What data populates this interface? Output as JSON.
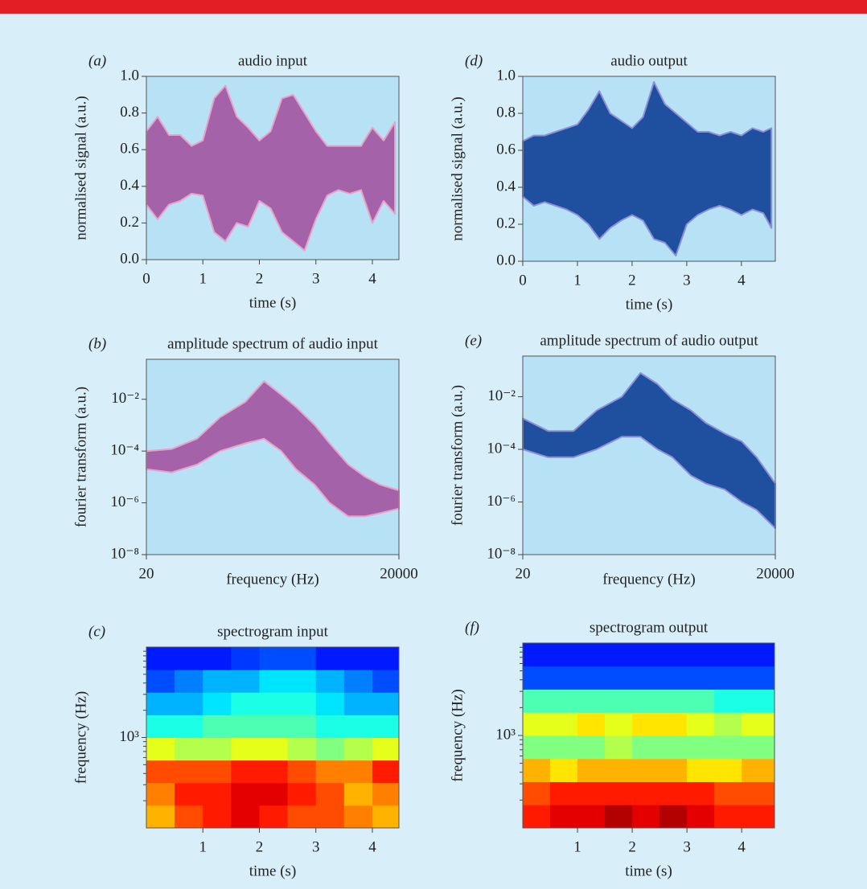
{
  "chart_data": [
    {
      "type": "area",
      "panel_label": "(a)",
      "title": "audio input",
      "xlabel": "time (s)",
      "ylabel": "normalised signal (a.u.)",
      "x": [
        0,
        0.2,
        0.4,
        0.6,
        0.8,
        1.0,
        1.2,
        1.4,
        1.6,
        1.8,
        2.0,
        2.2,
        2.4,
        2.6,
        2.8,
        3.0,
        3.2,
        3.4,
        3.6,
        3.8,
        4.0,
        4.2,
        4.4
      ],
      "upper": [
        0.7,
        0.78,
        0.68,
        0.68,
        0.62,
        0.65,
        0.88,
        0.95,
        0.78,
        0.72,
        0.65,
        0.7,
        0.88,
        0.9,
        0.8,
        0.7,
        0.62,
        0.62,
        0.62,
        0.62,
        0.72,
        0.65,
        0.75
      ],
      "lower": [
        0.3,
        0.22,
        0.3,
        0.32,
        0.36,
        0.35,
        0.15,
        0.1,
        0.2,
        0.18,
        0.32,
        0.28,
        0.15,
        0.1,
        0.05,
        0.22,
        0.35,
        0.38,
        0.36,
        0.38,
        0.2,
        0.32,
        0.25
      ],
      "color": "#a462a8",
      "edge_color": "#ec9fc9",
      "xlim": [
        0,
        4.47
      ],
      "xticks": [
        0,
        1,
        2,
        3,
        4
      ],
      "ylim": [
        0,
        1
      ],
      "yticks": [
        {
          "value": 0,
          "label": "0.0"
        },
        0.2,
        0.4,
        0.6,
        0.8,
        {
          "value": 1,
          "label": "1.0"
        }
      ]
    },
    {
      "type": "area",
      "panel_label": "(b)",
      "title": "amplitude spectrum of audio input",
      "xlabel": "frequency (Hz)",
      "ylabel": "fourier transform (a.u.)",
      "xlog": true,
      "ylog": true,
      "x": [
        20,
        40,
        80,
        150,
        300,
        500,
        800,
        1200,
        2000,
        3000,
        5000,
        8000,
        12000,
        20000
      ],
      "upper": [
        0.0001,
        0.00012,
        0.0003,
        0.002,
        0.008,
        0.05,
        0.015,
        0.005,
        0.001,
        0.0002,
        3e-05,
        1e-05,
        5e-06,
        3e-06
      ],
      "lower": [
        2e-05,
        1.5e-05,
        3e-05,
        0.0001,
        0.0002,
        0.0003,
        0.0001,
        2e-05,
        5e-06,
        1e-06,
        3e-07,
        3e-07,
        4e-07,
        6e-07
      ],
      "color": "#a462a8",
      "edge_color": "#ec9fc9",
      "xlim": [
        20,
        20000
      ],
      "xticks": [
        20,
        20000
      ],
      "ylim": [
        1e-08,
        0.35
      ],
      "yticks": [
        {
          "value": 1e-08,
          "label": "10⁻⁸"
        },
        {
          "value": 1e-06,
          "label": "10⁻⁶"
        },
        {
          "value": 0.0001,
          "label": "10⁻⁴"
        },
        {
          "value": 0.01,
          "label": "10⁻²"
        }
      ]
    },
    {
      "type": "heatmap",
      "panel_label": "(c)",
      "title": "spectrogram input",
      "xlabel": "time (s)",
      "ylabel": "frequency (Hz)",
      "ylog": true,
      "colormap": "jet",
      "xbins": [
        0,
        0.5,
        1,
        1.5,
        2,
        2.5,
        3,
        3.5,
        4,
        4.47
      ],
      "ybins": [
        100,
        178,
        316,
        562,
        1000,
        1778,
        3162,
        5623,
        10000
      ],
      "z": [
        [
          0.7,
          0.8,
          0.85,
          0.9,
          0.85,
          0.8,
          0.8,
          0.75,
          0.7
        ],
        [
          0.75,
          0.85,
          0.85,
          0.9,
          0.9,
          0.85,
          0.8,
          0.7,
          0.75
        ],
        [
          0.8,
          0.8,
          0.8,
          0.85,
          0.85,
          0.8,
          0.75,
          0.75,
          0.85
        ],
        [
          0.6,
          0.55,
          0.55,
          0.6,
          0.6,
          0.55,
          0.5,
          0.55,
          0.6
        ],
        [
          0.4,
          0.4,
          0.45,
          0.45,
          0.45,
          0.45,
          0.4,
          0.4,
          0.4
        ],
        [
          0.3,
          0.3,
          0.35,
          0.4,
          0.4,
          0.4,
          0.35,
          0.3,
          0.3
        ],
        [
          0.2,
          0.25,
          0.3,
          0.3,
          0.35,
          0.35,
          0.3,
          0.25,
          0.2
        ],
        [
          0.15,
          0.15,
          0.15,
          0.18,
          0.2,
          0.2,
          0.15,
          0.15,
          0.15
        ]
      ],
      "xlim": [
        0,
        4.47
      ],
      "xticks": [
        1,
        2,
        3,
        4
      ],
      "ylim": [
        100,
        10000
      ],
      "yticks": [
        {
          "value": 1000,
          "label": "10³"
        }
      ],
      "yticks_minor": [
        200,
        300,
        400,
        500,
        600,
        700,
        800,
        900,
        2000,
        3000,
        4000,
        5000,
        6000,
        7000,
        8000,
        9000
      ]
    },
    {
      "type": "area",
      "panel_label": "(d)",
      "title": "audio output",
      "xlabel": "time (s)",
      "ylabel": "normalised signal (a.u.)",
      "x": [
        0,
        0.2,
        0.4,
        0.6,
        0.8,
        1.0,
        1.2,
        1.4,
        1.6,
        1.8,
        2.0,
        2.2,
        2.4,
        2.6,
        2.8,
        3.0,
        3.2,
        3.4,
        3.6,
        3.8,
        4.0,
        4.2,
        4.4,
        4.55
      ],
      "upper": [
        0.65,
        0.68,
        0.68,
        0.7,
        0.72,
        0.74,
        0.82,
        0.92,
        0.8,
        0.76,
        0.72,
        0.78,
        0.97,
        0.85,
        0.8,
        0.75,
        0.7,
        0.7,
        0.68,
        0.7,
        0.68,
        0.72,
        0.7,
        0.72
      ],
      "lower": [
        0.35,
        0.3,
        0.32,
        0.3,
        0.28,
        0.25,
        0.2,
        0.12,
        0.18,
        0.22,
        0.25,
        0.22,
        0.12,
        0.1,
        0.03,
        0.2,
        0.25,
        0.28,
        0.3,
        0.28,
        0.25,
        0.28,
        0.26,
        0.18
      ],
      "color": "#1f4f9f",
      "edge_color": "#8f8fd6",
      "xlim": [
        0,
        4.62
      ],
      "xticks": [
        0,
        1,
        2,
        3,
        4
      ],
      "ylim": [
        0,
        1
      ],
      "yticks": [
        {
          "value": 0,
          "label": "0.0"
        },
        0.2,
        0.4,
        0.6,
        0.8,
        {
          "value": 1,
          "label": "1.0"
        }
      ]
    },
    {
      "type": "area",
      "panel_label": "(e)",
      "title": "amplitude spectrum of audio output",
      "xlabel": "frequency (Hz)",
      "ylabel": "fourier transform (a.u.)",
      "xlog": true,
      "ylog": true,
      "x": [
        20,
        40,
        80,
        150,
        300,
        500,
        800,
        1200,
        2000,
        3000,
        5000,
        8000,
        12000,
        20000
      ],
      "upper": [
        0.0015,
        0.0005,
        0.0005,
        0.003,
        0.01,
        0.08,
        0.03,
        0.008,
        0.003,
        0.001,
        0.0004,
        0.0002,
        5e-05,
        5e-06
      ],
      "lower": [
        0.0001,
        5e-05,
        5e-05,
        0.0001,
        0.0003,
        0.0003,
        0.0001,
        5e-05,
        1e-05,
        5e-06,
        3e-06,
        1e-06,
        5e-07,
        1e-07
      ],
      "color": "#1f4f9f",
      "edge_color": "#8f8fd6",
      "xlim": [
        20,
        20000
      ],
      "xticks": [
        20,
        20000
      ],
      "ylim": [
        1e-08,
        0.35
      ],
      "yticks": [
        {
          "value": 1e-08,
          "label": "10⁻⁸"
        },
        {
          "value": 1e-06,
          "label": "10⁻⁶"
        },
        {
          "value": 0.0001,
          "label": "10⁻⁴"
        },
        {
          "value": 0.01,
          "label": "10⁻²"
        }
      ]
    },
    {
      "type": "heatmap",
      "panel_label": "(f)",
      "title": "spectrogram output",
      "xlabel": "time (s)",
      "ylabel": "frequency (Hz)",
      "ylog": true,
      "colormap": "jet",
      "xbins": [
        0,
        0.5,
        1,
        1.5,
        2,
        2.5,
        3,
        3.5,
        4,
        4.6
      ],
      "ybins": [
        100,
        178,
        316,
        562,
        1000,
        1778,
        3162,
        5623,
        10000
      ],
      "z": [
        [
          0.85,
          0.9,
          0.9,
          0.95,
          0.9,
          0.95,
          0.9,
          0.85,
          0.85
        ],
        [
          0.8,
          0.85,
          0.85,
          0.85,
          0.85,
          0.85,
          0.85,
          0.8,
          0.8
        ],
        [
          0.7,
          0.65,
          0.7,
          0.7,
          0.7,
          0.7,
          0.65,
          0.65,
          0.7
        ],
        [
          0.5,
          0.5,
          0.5,
          0.55,
          0.5,
          0.5,
          0.5,
          0.5,
          0.5
        ],
        [
          0.6,
          0.6,
          0.65,
          0.6,
          0.65,
          0.65,
          0.6,
          0.55,
          0.6
        ],
        [
          0.45,
          0.45,
          0.45,
          0.45,
          0.45,
          0.45,
          0.45,
          0.4,
          0.4
        ],
        [
          0.2,
          0.2,
          0.2,
          0.2,
          0.2,
          0.2,
          0.2,
          0.2,
          0.2
        ],
        [
          0.15,
          0.15,
          0.15,
          0.15,
          0.15,
          0.15,
          0.15,
          0.15,
          0.15
        ]
      ],
      "xlim": [
        0,
        4.6
      ],
      "xticks": [
        1,
        2,
        3,
        4
      ],
      "ylim": [
        100,
        10000
      ],
      "yticks": [
        {
          "value": 1000,
          "label": "10³"
        }
      ],
      "yticks_minor": [
        200,
        300,
        400,
        500,
        600,
        700,
        800,
        900,
        2000,
        3000,
        4000,
        5000,
        6000,
        7000,
        8000,
        9000
      ]
    }
  ]
}
